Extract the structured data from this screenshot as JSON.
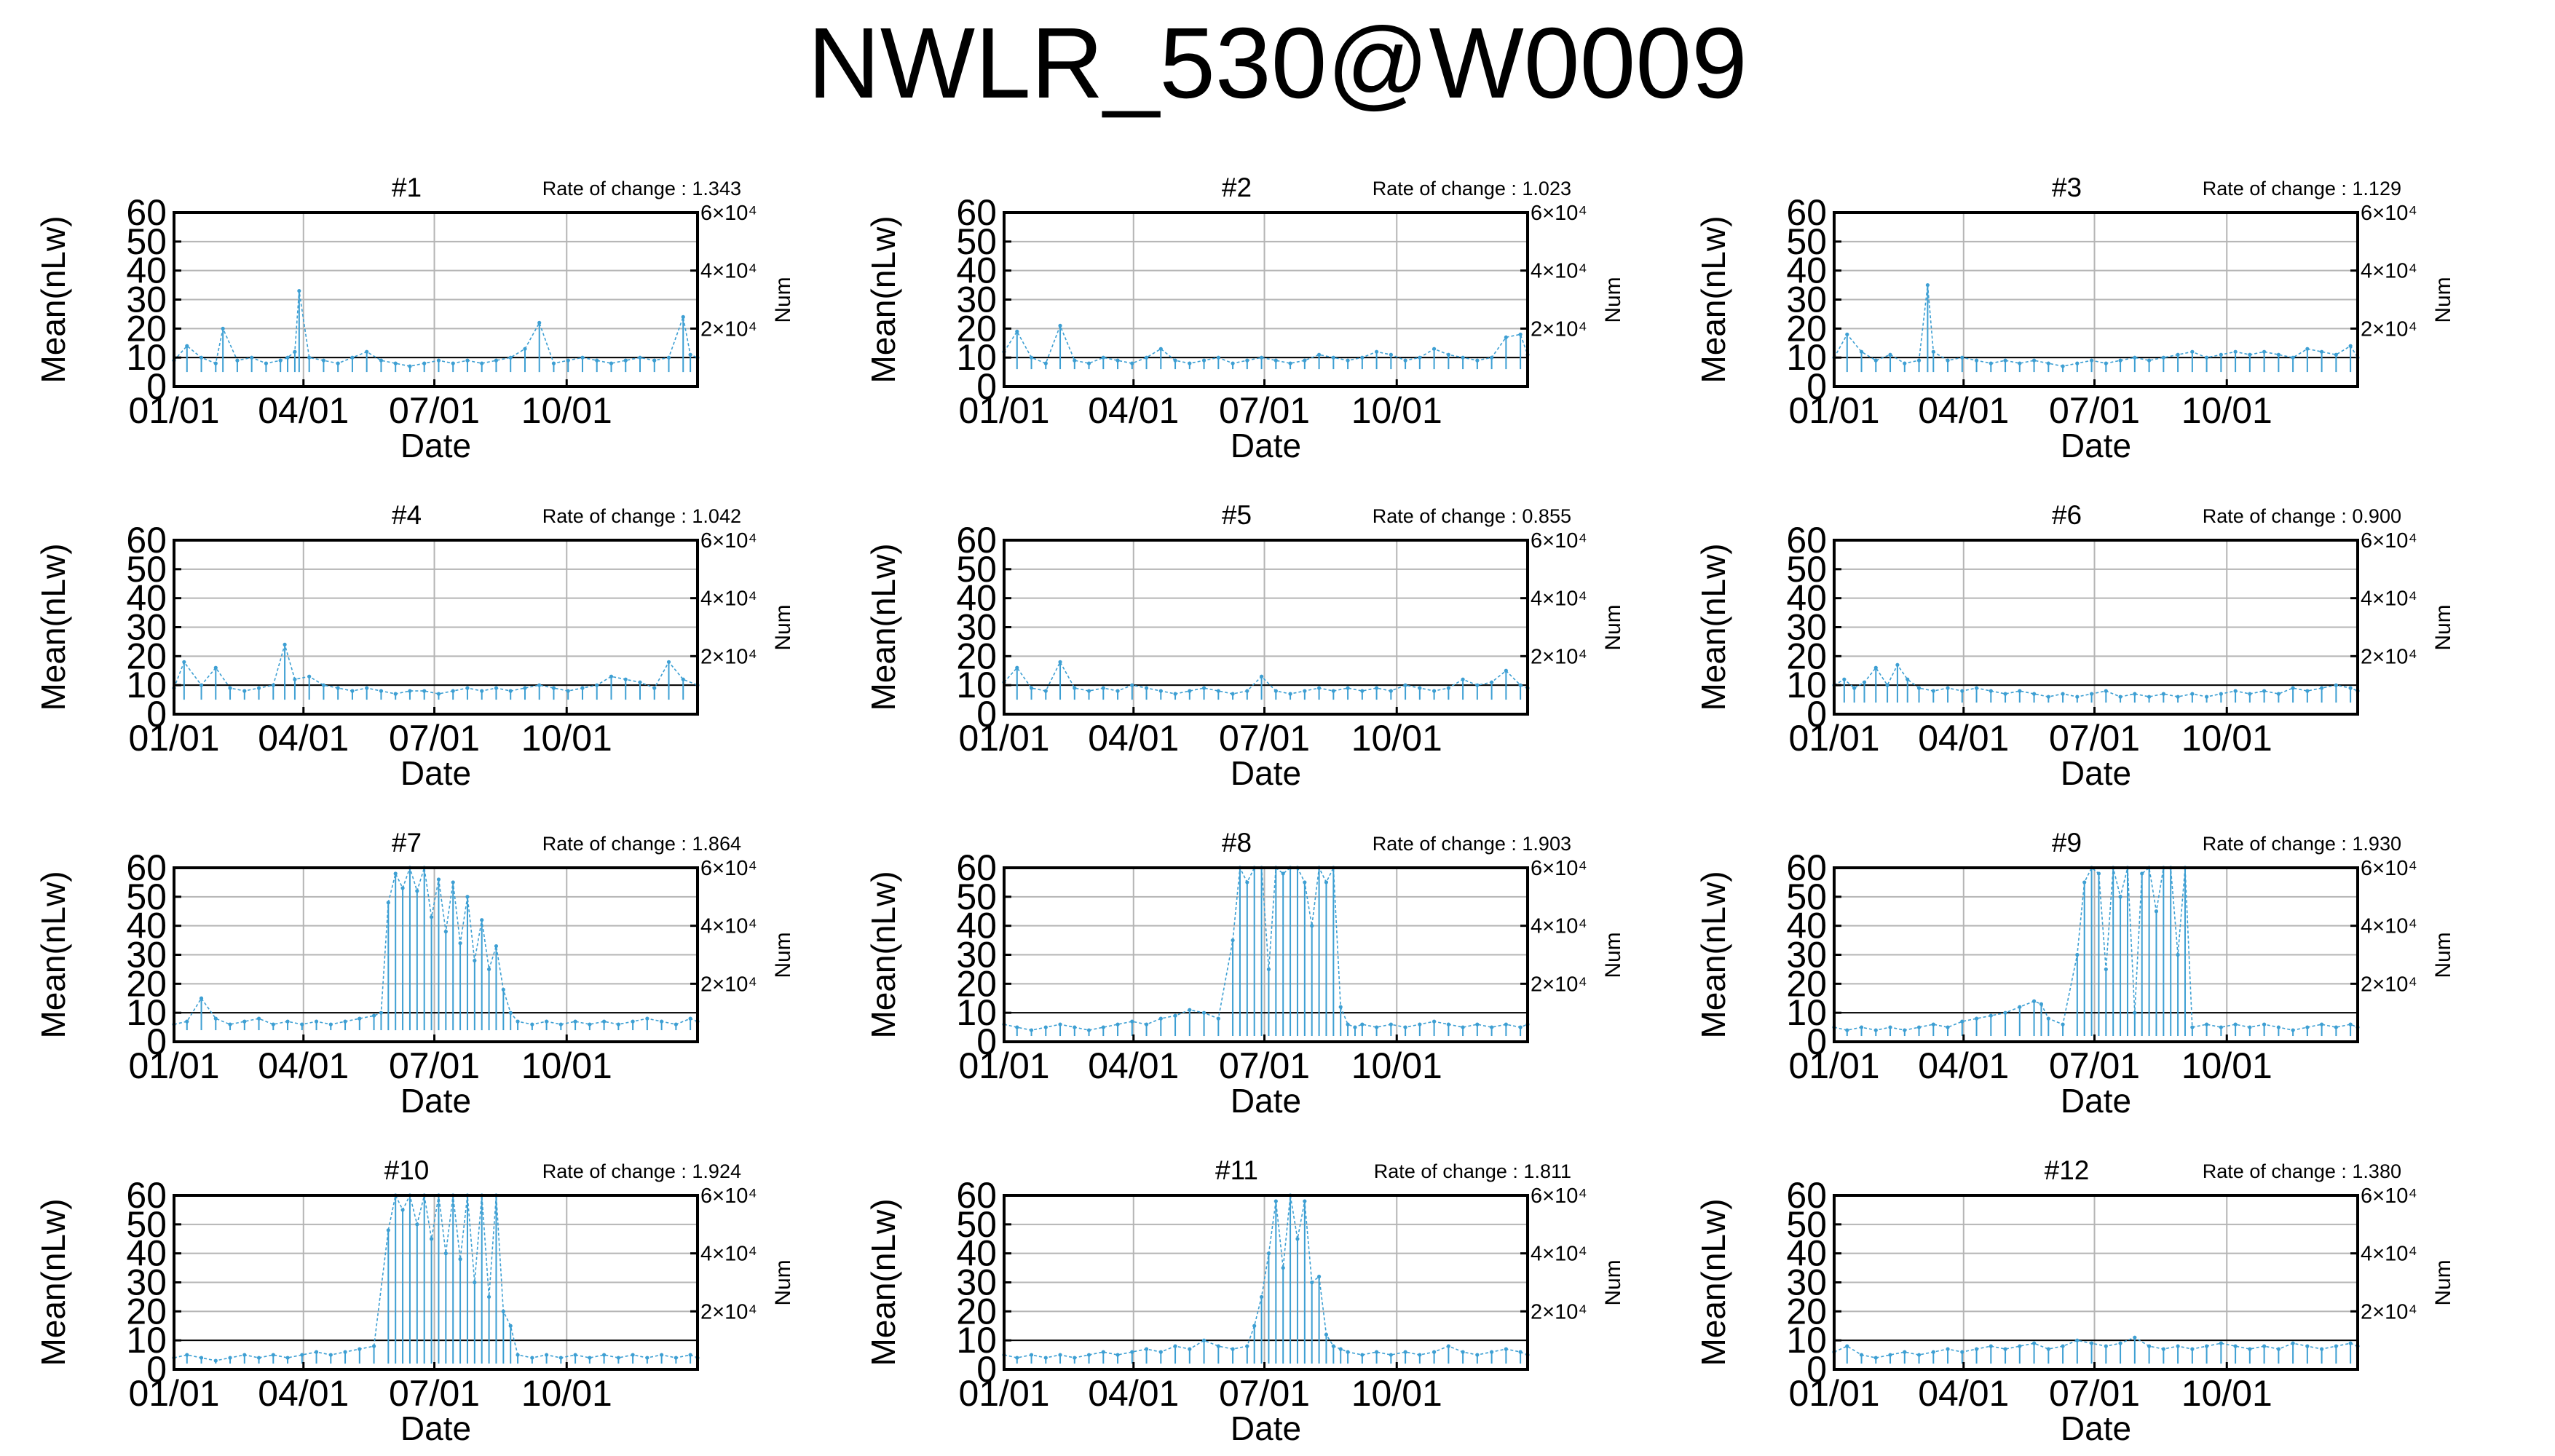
{
  "title": "NWLR_530@W0009",
  "shared_axes": {
    "xlabel": "Date",
    "ylabel": "Mean(nLw)",
    "y2label": "Num",
    "x_ticks": [
      "01/01",
      "04/01",
      "07/01",
      "10/01"
    ],
    "x_tick_days": [
      1,
      91,
      182,
      274
    ],
    "y_ticks": [
      "0",
      "10",
      "20",
      "30",
      "40",
      "50",
      "60"
    ],
    "y_tick_values": [
      0,
      10,
      20,
      30,
      40,
      50,
      60
    ],
    "y2_ticks": [
      "2×10⁴",
      "4×10⁴",
      "6×10⁴"
    ],
    "y2_tick_values": [
      20000,
      40000,
      60000
    ]
  },
  "colors": {
    "series": "#3d9fd3",
    "grid": "#b5b5b5",
    "baseline": "#000000"
  },
  "chart_data": [
    {
      "type": "line",
      "title": "#1",
      "rate_label": "Rate of change : 1.343",
      "rate_of_change": 1.343,
      "xlim": [
        1,
        365
      ],
      "ylim": [
        0,
        60
      ],
      "y2lim": [
        0,
        60000
      ],
      "grid": true,
      "x": [
        1,
        10,
        20,
        30,
        35,
        45,
        55,
        65,
        75,
        80,
        85,
        88,
        95,
        105,
        115,
        125,
        135,
        145,
        155,
        165,
        175,
        185,
        195,
        205,
        215,
        225,
        235,
        245,
        255,
        265,
        275,
        285,
        295,
        305,
        315,
        325,
        335,
        345,
        355,
        360,
        365
      ],
      "series": [
        {
          "values": [
            9,
            14,
            10,
            8,
            20,
            9,
            10,
            8,
            9,
            10,
            12,
            33,
            10,
            9,
            8,
            10,
            12,
            9,
            8,
            7,
            8,
            9,
            8,
            9,
            8,
            9,
            10,
            13,
            22,
            8,
            9,
            10,
            9,
            8,
            9,
            10,
            9,
            10,
            24,
            11,
            10
          ]
        }
      ]
    },
    {
      "type": "line",
      "title": "#2",
      "rate_label": "Rate of change : 1.023",
      "rate_of_change": 1.023,
      "xlim": [
        1,
        365
      ],
      "ylim": [
        0,
        60
      ],
      "y2lim": [
        0,
        60000
      ],
      "grid": true,
      "x": [
        1,
        10,
        20,
        30,
        40,
        50,
        60,
        70,
        80,
        90,
        100,
        110,
        120,
        130,
        140,
        150,
        160,
        170,
        180,
        190,
        200,
        210,
        220,
        230,
        240,
        250,
        260,
        270,
        280,
        290,
        300,
        310,
        320,
        330,
        340,
        350,
        360,
        365
      ],
      "series": [
        {
          "values": [
            12,
            19,
            10,
            8,
            21,
            9,
            8,
            10,
            9,
            8,
            10,
            13,
            9,
            8,
            9,
            10,
            8,
            9,
            10,
            9,
            8,
            9,
            11,
            10,
            9,
            10,
            12,
            11,
            9,
            10,
            13,
            11,
            10,
            9,
            10,
            17,
            18,
            11
          ]
        }
      ]
    },
    {
      "type": "line",
      "title": "#3",
      "rate_label": "Rate of change : 1.129",
      "rate_of_change": 1.129,
      "xlim": [
        1,
        365
      ],
      "ylim": [
        0,
        60
      ],
      "y2lim": [
        0,
        60000
      ],
      "grid": true,
      "x": [
        1,
        10,
        20,
        30,
        40,
        50,
        60,
        66,
        70,
        80,
        90,
        100,
        110,
        120,
        130,
        140,
        150,
        160,
        170,
        180,
        190,
        200,
        210,
        220,
        230,
        240,
        250,
        260,
        270,
        280,
        290,
        300,
        310,
        320,
        330,
        340,
        350,
        360,
        365
      ],
      "series": [
        {
          "values": [
            10,
            18,
            12,
            9,
            11,
            8,
            9,
            35,
            12,
            9,
            10,
            9,
            8,
            9,
            8,
            9,
            8,
            7,
            8,
            9,
            8,
            9,
            10,
            9,
            10,
            11,
            12,
            10,
            11,
            12,
            11,
            12,
            11,
            10,
            13,
            12,
            11,
            14,
            10
          ]
        }
      ]
    },
    {
      "type": "line",
      "title": "#4",
      "rate_label": "Rate of change : 1.042",
      "rate_of_change": 1.042,
      "xlim": [
        1,
        365
      ],
      "ylim": [
        0,
        60
      ],
      "y2lim": [
        0,
        60000
      ],
      "grid": true,
      "x": [
        1,
        8,
        20,
        30,
        40,
        50,
        60,
        70,
        78,
        85,
        95,
        105,
        115,
        125,
        135,
        145,
        155,
        165,
        175,
        185,
        195,
        205,
        215,
        225,
        235,
        245,
        255,
        265,
        275,
        285,
        295,
        305,
        315,
        325,
        335,
        345,
        355,
        365
      ],
      "series": [
        {
          "values": [
            9,
            18,
            10,
            16,
            9,
            8,
            9,
            10,
            24,
            12,
            13,
            10,
            9,
            8,
            9,
            8,
            7,
            8,
            8,
            7,
            8,
            9,
            8,
            9,
            8,
            9,
            10,
            9,
            8,
            9,
            10,
            13,
            12,
            11,
            9,
            18,
            12,
            10
          ]
        }
      ]
    },
    {
      "type": "line",
      "title": "#5",
      "rate_label": "Rate of change : 0.855",
      "rate_of_change": 0.855,
      "xlim": [
        1,
        365
      ],
      "ylim": [
        0,
        60
      ],
      "y2lim": [
        0,
        60000
      ],
      "grid": true,
      "x": [
        1,
        10,
        20,
        30,
        40,
        50,
        60,
        70,
        80,
        90,
        100,
        110,
        120,
        130,
        140,
        150,
        160,
        170,
        180,
        190,
        200,
        210,
        220,
        230,
        240,
        250,
        260,
        270,
        280,
        290,
        300,
        310,
        320,
        330,
        340,
        350,
        360,
        365
      ],
      "series": [
        {
          "values": [
            11,
            16,
            9,
            8,
            18,
            9,
            8,
            9,
            8,
            10,
            9,
            8,
            7,
            8,
            9,
            8,
            7,
            8,
            13,
            8,
            7,
            8,
            9,
            8,
            9,
            8,
            9,
            8,
            10,
            9,
            8,
            9,
            12,
            10,
            11,
            15,
            10,
            9
          ]
        }
      ]
    },
    {
      "type": "line",
      "title": "#6",
      "rate_label": "Rate of change : 0.900",
      "rate_of_change": 0.9,
      "xlim": [
        1,
        365
      ],
      "ylim": [
        0,
        60
      ],
      "y2lim": [
        0,
        60000
      ],
      "grid": true,
      "x": [
        1,
        8,
        15,
        22,
        30,
        38,
        45,
        52,
        60,
        70,
        80,
        90,
        100,
        110,
        120,
        130,
        140,
        150,
        160,
        170,
        180,
        190,
        200,
        210,
        220,
        230,
        240,
        250,
        260,
        270,
        280,
        290,
        300,
        310,
        320,
        330,
        340,
        350,
        360,
        365
      ],
      "series": [
        {
          "values": [
            10,
            12,
            9,
            11,
            16,
            10,
            17,
            12,
            9,
            8,
            9,
            8,
            9,
            8,
            7,
            8,
            7,
            6,
            7,
            6,
            7,
            8,
            6,
            7,
            6,
            7,
            6,
            7,
            6,
            7,
            8,
            7,
            8,
            7,
            9,
            8,
            9,
            10,
            9,
            8
          ]
        }
      ]
    },
    {
      "type": "line",
      "title": "#7",
      "rate_label": "Rate of change : 1.864",
      "rate_of_change": 1.864,
      "xlim": [
        1,
        365
      ],
      "ylim": [
        0,
        60
      ],
      "y2lim": [
        0,
        60000
      ],
      "grid": true,
      "x": [
        1,
        10,
        20,
        30,
        40,
        50,
        60,
        70,
        80,
        90,
        100,
        110,
        120,
        130,
        140,
        145,
        150,
        155,
        160,
        165,
        170,
        175,
        180,
        185,
        190,
        195,
        200,
        205,
        210,
        215,
        220,
        225,
        230,
        235,
        240,
        250,
        260,
        270,
        280,
        290,
        300,
        310,
        320,
        330,
        340,
        350,
        360,
        365
      ],
      "series": [
        {
          "values": [
            6,
            7,
            15,
            8,
            6,
            7,
            8,
            6,
            7,
            6,
            7,
            6,
            7,
            8,
            9,
            10,
            48,
            58,
            53,
            60,
            52,
            60,
            43,
            56,
            38,
            55,
            34,
            50,
            28,
            42,
            25,
            33,
            18,
            10,
            7,
            6,
            7,
            6,
            7,
            6,
            7,
            6,
            7,
            8,
            7,
            6,
            8,
            7
          ]
        }
      ]
    },
    {
      "type": "line",
      "title": "#8",
      "rate_label": "Rate of change : 1.903",
      "rate_of_change": 1.903,
      "xlim": [
        1,
        365
      ],
      "ylim": [
        0,
        60
      ],
      "y2lim": [
        0,
        60000
      ],
      "grid": true,
      "x": [
        1,
        10,
        20,
        30,
        40,
        50,
        60,
        70,
        80,
        90,
        100,
        110,
        120,
        130,
        140,
        150,
        160,
        165,
        170,
        175,
        180,
        185,
        190,
        195,
        200,
        205,
        210,
        215,
        220,
        225,
        230,
        235,
        240,
        245,
        250,
        260,
        270,
        280,
        290,
        300,
        310,
        320,
        330,
        340,
        350,
        360,
        365
      ],
      "series": [
        {
          "values": [
            6,
            5,
            4,
            5,
            6,
            5,
            4,
            5,
            6,
            7,
            6,
            8,
            9,
            11,
            10,
            8,
            35,
            60,
            55,
            60,
            60,
            25,
            60,
            58,
            60,
            60,
            55,
            40,
            60,
            55,
            60,
            12,
            6,
            5,
            6,
            5,
            6,
            5,
            6,
            7,
            6,
            5,
            6,
            5,
            6,
            5,
            6
          ]
        }
      ]
    },
    {
      "type": "line",
      "title": "#9",
      "rate_label": "Rate of change : 1.930",
      "rate_of_change": 1.93,
      "xlim": [
        1,
        365
      ],
      "ylim": [
        0,
        60
      ],
      "y2lim": [
        0,
        60000
      ],
      "grid": true,
      "x": [
        1,
        10,
        20,
        30,
        40,
        50,
        60,
        70,
        80,
        90,
        100,
        110,
        120,
        130,
        140,
        145,
        150,
        160,
        170,
        175,
        180,
        185,
        190,
        195,
        200,
        205,
        210,
        215,
        220,
        225,
        230,
        235,
        240,
        245,
        250,
        260,
        270,
        280,
        290,
        300,
        310,
        320,
        330,
        340,
        350,
        360,
        365
      ],
      "series": [
        {
          "values": [
            5,
            4,
            5,
            4,
            5,
            4,
            5,
            6,
            5,
            7,
            8,
            9,
            10,
            12,
            14,
            13,
            8,
            6,
            30,
            55,
            60,
            58,
            25,
            60,
            50,
            60,
            10,
            58,
            60,
            45,
            60,
            60,
            30,
            60,
            5,
            6,
            5,
            6,
            5,
            6,
            5,
            4,
            5,
            6,
            5,
            6,
            5
          ]
        }
      ]
    },
    {
      "type": "line",
      "title": "#10",
      "rate_label": "Rate of change : 1.924",
      "rate_of_change": 1.924,
      "xlim": [
        1,
        365
      ],
      "ylim": [
        0,
        60
      ],
      "y2lim": [
        0,
        60000
      ],
      "grid": true,
      "x": [
        1,
        10,
        20,
        30,
        40,
        50,
        60,
        70,
        80,
        90,
        100,
        110,
        120,
        130,
        140,
        150,
        155,
        160,
        165,
        170,
        175,
        180,
        185,
        190,
        195,
        200,
        205,
        210,
        215,
        220,
        225,
        230,
        235,
        240,
        250,
        260,
        270,
        280,
        290,
        300,
        310,
        320,
        330,
        340,
        350,
        360,
        365
      ],
      "series": [
        {
          "values": [
            4,
            5,
            4,
            3,
            4,
            5,
            4,
            5,
            4,
            5,
            6,
            5,
            6,
            7,
            8,
            48,
            60,
            55,
            60,
            50,
            60,
            45,
            60,
            40,
            60,
            38,
            60,
            30,
            60,
            25,
            60,
            20,
            15,
            5,
            4,
            5,
            4,
            5,
            4,
            5,
            4,
            5,
            4,
            5,
            4,
            5,
            4
          ]
        }
      ]
    },
    {
      "type": "line",
      "title": "#11",
      "rate_label": "Rate of change : 1.811",
      "rate_of_change": 1.811,
      "xlim": [
        1,
        365
      ],
      "ylim": [
        0,
        60
      ],
      "y2lim": [
        0,
        60000
      ],
      "grid": true,
      "x": [
        1,
        10,
        20,
        30,
        40,
        50,
        60,
        70,
        80,
        90,
        100,
        110,
        120,
        130,
        140,
        150,
        160,
        170,
        175,
        180,
        185,
        190,
        195,
        200,
        205,
        210,
        215,
        220,
        225,
        230,
        235,
        240,
        250,
        260,
        270,
        280,
        290,
        300,
        310,
        320,
        330,
        340,
        350,
        360,
        365
      ],
      "series": [
        {
          "values": [
            5,
            4,
            5,
            4,
            5,
            4,
            5,
            6,
            5,
            6,
            7,
            6,
            8,
            7,
            10,
            8,
            7,
            8,
            15,
            25,
            40,
            58,
            35,
            60,
            45,
            58,
            30,
            32,
            12,
            8,
            7,
            6,
            5,
            6,
            5,
            6,
            5,
            6,
            8,
            6,
            5,
            6,
            7,
            6,
            5
          ]
        }
      ]
    },
    {
      "type": "line",
      "title": "#12",
      "rate_label": "Rate of change : 1.380",
      "rate_of_change": 1.38,
      "xlim": [
        1,
        365
      ],
      "ylim": [
        0,
        60
      ],
      "y2lim": [
        0,
        60000
      ],
      "grid": true,
      "x": [
        1,
        10,
        20,
        30,
        40,
        50,
        60,
        70,
        80,
        90,
        100,
        110,
        120,
        130,
        140,
        150,
        160,
        170,
        180,
        190,
        200,
        210,
        220,
        230,
        240,
        250,
        260,
        270,
        280,
        290,
        300,
        310,
        320,
        330,
        340,
        350,
        360,
        365
      ],
      "series": [
        {
          "values": [
            6,
            8,
            5,
            4,
            5,
            6,
            5,
            6,
            7,
            6,
            7,
            8,
            7,
            8,
            9,
            7,
            8,
            10,
            9,
            8,
            9,
            11,
            8,
            7,
            8,
            7,
            8,
            9,
            8,
            7,
            8,
            7,
            9,
            8,
            7,
            8,
            9,
            8
          ]
        }
      ]
    }
  ]
}
